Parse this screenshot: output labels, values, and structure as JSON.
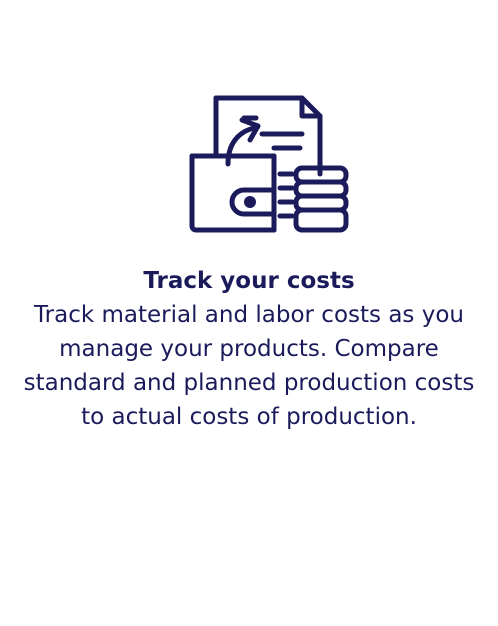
{
  "feature": {
    "icon": "wallet-invoice-coins-icon",
    "title": "Track your costs",
    "description": "Track material and labor costs as you manage your products. Compare standard and planned production costs to actual costs of production."
  },
  "colors": {
    "text": "#1b1b5c",
    "icon_stroke": "#1b1b5c",
    "background": "#ffffff"
  }
}
